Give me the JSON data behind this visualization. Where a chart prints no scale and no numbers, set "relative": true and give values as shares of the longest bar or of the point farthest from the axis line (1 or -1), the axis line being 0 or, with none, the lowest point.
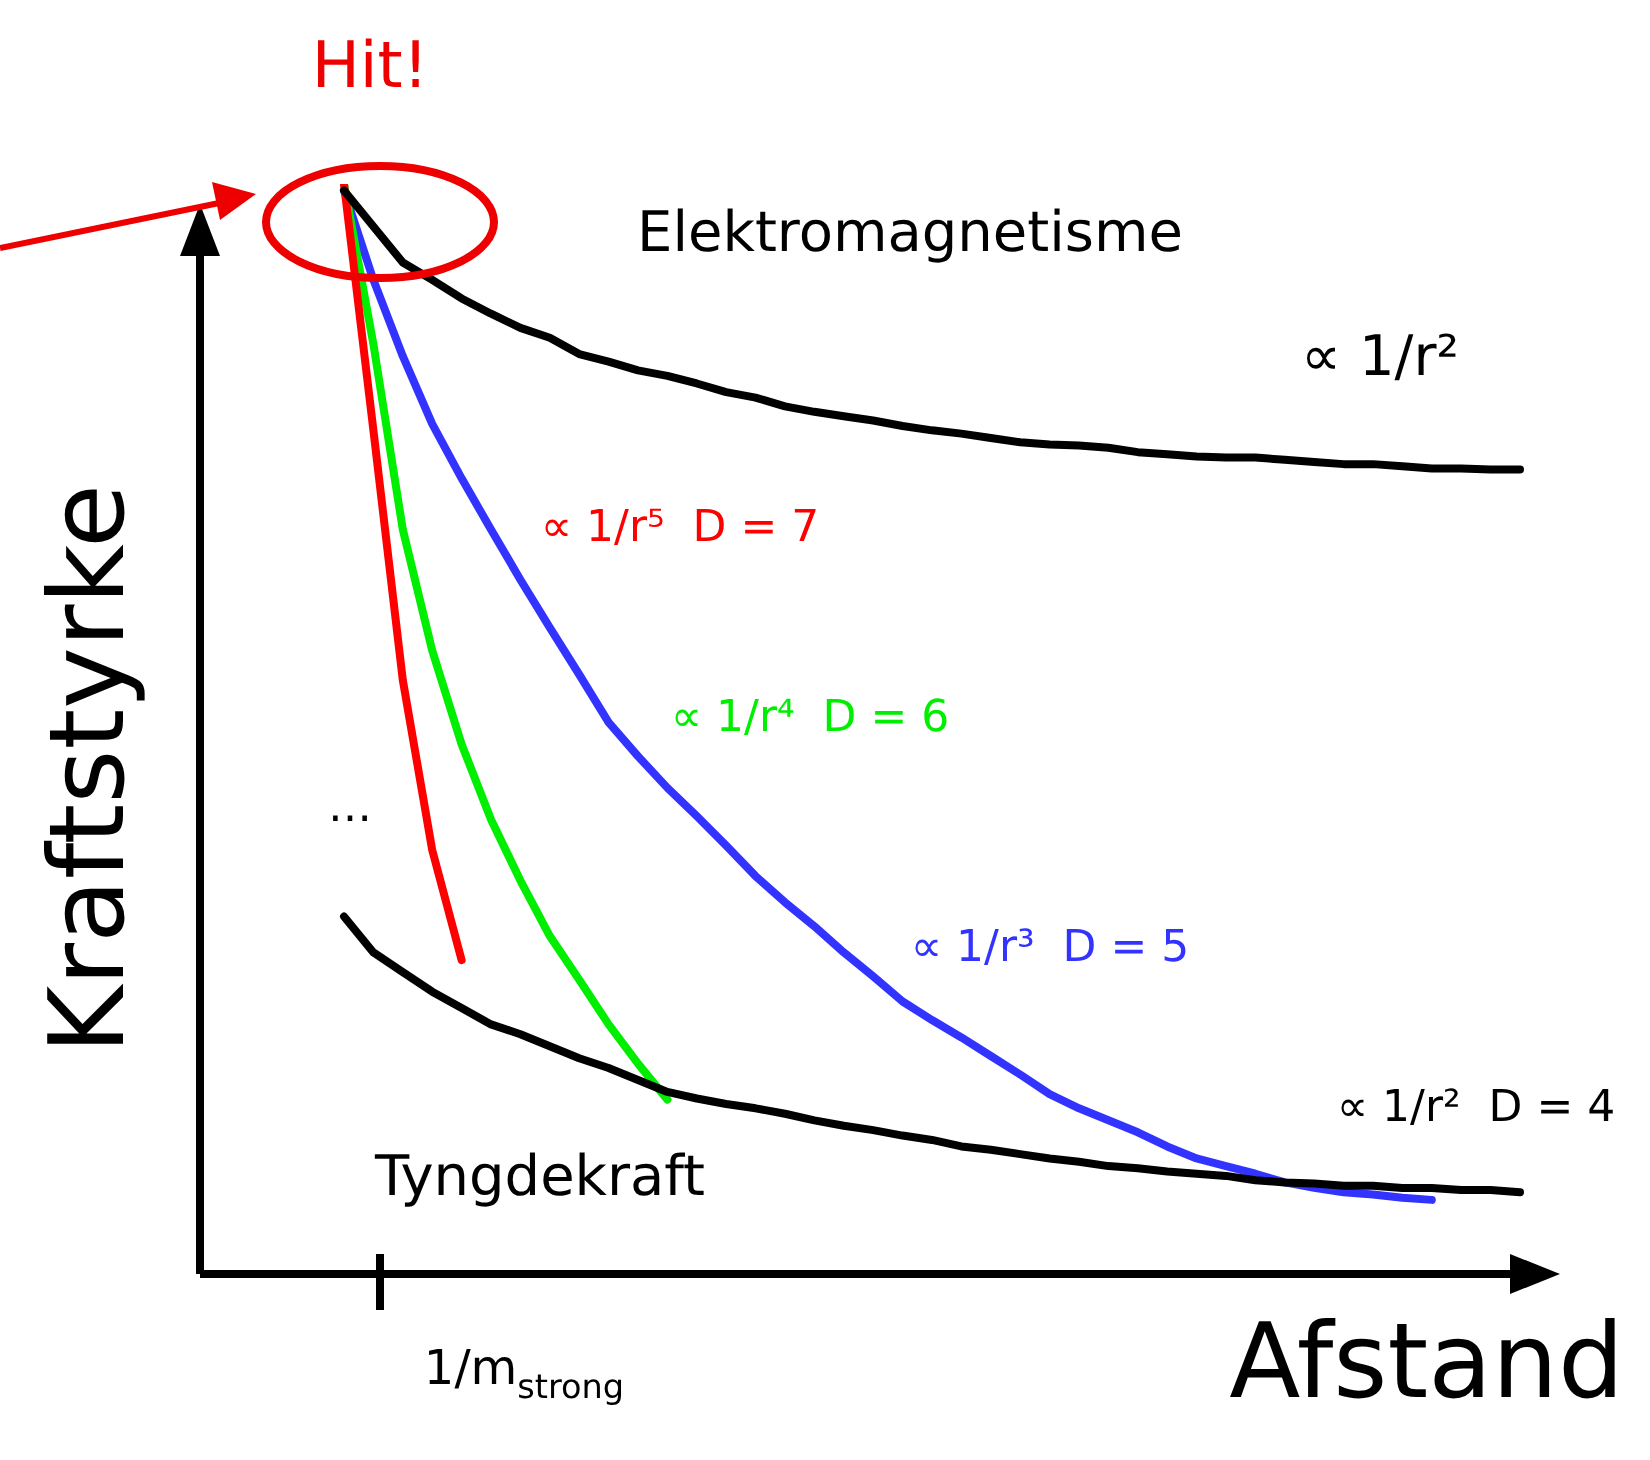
{
  "chart_data": {
    "type": "line",
    "relative": true,
    "ylabel": "Kraftstyrke",
    "xlabel": "Afstand",
    "legend": false,
    "marker": "none",
    "line_style": "solid",
    "categories": [
      null,
      null,
      null,
      null,
      null,
      null,
      null,
      null,
      null,
      null,
      null,
      null,
      null,
      null,
      null,
      null,
      null,
      null,
      null,
      null,
      null,
      null,
      null,
      null,
      null,
      null,
      null,
      null,
      null,
      null,
      null,
      null,
      null,
      null,
      null,
      null,
      null,
      null,
      null,
      null,
      null
    ],
    "series": [
      {
        "color": "#000000",
        "values": [
          0.994,
          0.961,
          0.928,
          0.912,
          0.895,
          0.881,
          0.868,
          0.859,
          0.844,
          0.837,
          0.829,
          0.824,
          0.817,
          0.809,
          0.804,
          0.796,
          0.791,
          0.787,
          0.783,
          0.778,
          0.774,
          0.771,
          0.767,
          0.763,
          0.761,
          0.76,
          0.758,
          0.754,
          0.752,
          0.75,
          0.749,
          0.749,
          0.747,
          0.745,
          0.743,
          0.743,
          0.741,
          0.739,
          0.739,
          0.738,
          0.738
        ]
      },
      {
        "color": "#000000",
        "values": [
          0.328,
          0.295,
          0.277,
          0.259,
          0.244,
          0.229,
          0.22,
          0.209,
          0.198,
          0.189,
          0.178,
          0.167,
          0.161,
          0.156,
          0.152,
          0.147,
          0.141,
          0.136,
          0.132,
          0.127,
          0.123,
          0.117,
          0.114,
          0.11,
          0.106,
          0.103,
          0.099,
          0.097,
          0.094,
          0.092,
          0.09,
          0.086,
          0.084,
          0.083,
          0.081,
          0.081,
          0.079,
          0.079,
          0.077,
          0.077,
          0.075
        ]
      },
      {
        "color": "#ff0000",
        "values": [
          1.0,
          0.774,
          0.545,
          0.389,
          0.288,
          null,
          null,
          null,
          null,
          null,
          null,
          null,
          null,
          null,
          null,
          null,
          null,
          null,
          null,
          null,
          null,
          null,
          null,
          null,
          null,
          null,
          null,
          null,
          null,
          null,
          null,
          null,
          null,
          null,
          null,
          null,
          null,
          null,
          null,
          null,
          null
        ]
      },
      {
        "color": "#00ee00",
        "values": [
          1.0,
          0.853,
          0.683,
          0.572,
          0.486,
          0.417,
          0.361,
          0.31,
          0.27,
          0.229,
          0.193,
          0.16,
          null,
          null,
          null,
          null,
          null,
          null,
          null,
          null,
          null,
          null,
          null,
          null,
          null,
          null,
          null,
          null,
          null,
          null,
          null,
          null,
          null,
          null,
          null,
          null,
          null,
          null,
          null,
          null,
          null
        ]
      },
      {
        "color": "#3333ff",
        "values": [
          0.994,
          0.912,
          0.842,
          0.78,
          0.73,
          0.683,
          0.637,
          0.593,
          0.55,
          0.506,
          0.475,
          0.446,
          0.42,
          0.393,
          0.365,
          0.341,
          0.319,
          0.295,
          0.273,
          0.25,
          0.233,
          0.217,
          0.2,
          0.183,
          0.165,
          0.152,
          0.141,
          0.13,
          0.117,
          0.106,
          0.099,
          0.092,
          0.084,
          0.079,
          0.075,
          0.073,
          0.07,
          0.068,
          null,
          null,
          null
        ]
      }
    ],
    "annotations": [
      "Hit!",
      "1/m$_{strong}$",
      "Elektromagnetisme",
      "∝ 1/r²",
      "∝ 1/r⁵  D = 7",
      "∝ 1/r⁴  D = 6",
      "∝ 1/r³  D = 5",
      "∝ 1/r²  D = 4",
      "Tyngdekraft",
      "…"
    ]
  }
}
